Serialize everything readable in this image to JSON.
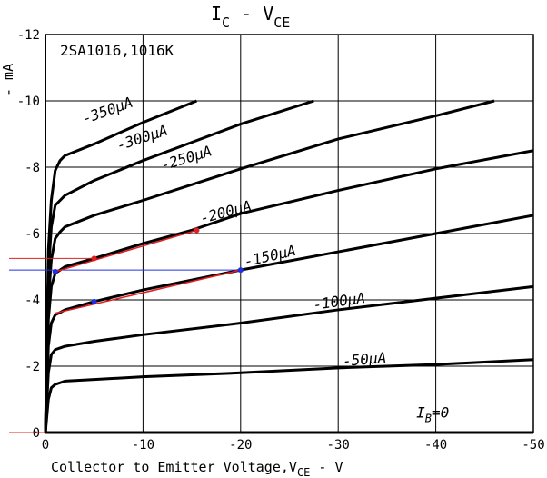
{
  "chart_data": {
    "type": "line",
    "title": "I_C - V_CE",
    "title_main": "I",
    "title_sub1": "C",
    "title_mid": " - V",
    "title_sub2": "CE",
    "part_number": "2SA1016,1016K",
    "xlabel": "Collector to Emitter Voltage,V_CE - V",
    "xlabel_main": "Collector to Emitter Voltage,V",
    "xlabel_sub": "CE",
    "xlabel_tail": " - V",
    "ylabel": "- mA",
    "xlim": [
      0,
      -50
    ],
    "ylim": [
      0,
      -12
    ],
    "x_ticks": [
      "0",
      "-10",
      "-20",
      "-30",
      "-40",
      "-50"
    ],
    "y_ticks": [
      "0",
      "-2",
      "-4",
      "-6",
      "-8",
      "-10",
      "-12"
    ],
    "grid": true,
    "series": [
      {
        "name": "I_B = 0",
        "label": "I",
        "label_sub": "B",
        "label_tail": "=0",
        "x": [
          0,
          -50
        ],
        "y": [
          0,
          0
        ]
      },
      {
        "name": "-50 μA",
        "label": "-50μA",
        "x": [
          0,
          -0.3,
          -0.6,
          -1,
          -1.5,
          -2,
          -5,
          -10,
          -20,
          -30,
          -40,
          -50
        ],
        "y": [
          0,
          -1.0,
          -1.35,
          -1.45,
          -1.5,
          -1.55,
          -1.6,
          -1.68,
          -1.8,
          -1.95,
          -2.05,
          -2.2
        ]
      },
      {
        "name": "-100 μA",
        "label": "-100μA",
        "x": [
          0,
          -0.3,
          -0.6,
          -1,
          -1.5,
          -2,
          -5,
          -10,
          -20,
          -30,
          -40,
          -50
        ],
        "y": [
          0,
          -1.8,
          -2.35,
          -2.5,
          -2.55,
          -2.6,
          -2.75,
          -2.95,
          -3.3,
          -3.7,
          -4.05,
          -4.4
        ]
      },
      {
        "name": "-150 μA",
        "label": "-150μA",
        "x": [
          0,
          -0.3,
          -0.6,
          -1,
          -1.5,
          -2,
          -5,
          -10,
          -20,
          -30,
          -40,
          -50
        ],
        "y": [
          0,
          -2.6,
          -3.3,
          -3.55,
          -3.62,
          -3.7,
          -3.95,
          -4.3,
          -4.9,
          -5.45,
          -6.0,
          -6.55
        ]
      },
      {
        "name": "-200 μA",
        "label": "-200μA",
        "x": [
          0,
          -0.3,
          -0.6,
          -1,
          -1.5,
          -2,
          -5,
          -10,
          -15,
          -20,
          -30,
          -40,
          -50
        ],
        "y": [
          0,
          -3.4,
          -4.4,
          -4.8,
          -4.9,
          -5.0,
          -5.25,
          -5.7,
          -6.1,
          -6.6,
          -7.3,
          -7.95,
          -8.5
        ]
      },
      {
        "name": "-250 μA",
        "label": "-250μA",
        "x": [
          0,
          -0.3,
          -0.6,
          -1,
          -1.5,
          -2,
          -5,
          -10,
          -20,
          -30,
          -40,
          -46
        ],
        "y": [
          0,
          -4.0,
          -5.2,
          -5.85,
          -6.05,
          -6.2,
          -6.55,
          -7.0,
          -7.95,
          -8.85,
          -9.55,
          -10.0
        ]
      },
      {
        "name": "-300 μA",
        "label": "-300μA",
        "x": [
          0,
          -0.3,
          -0.6,
          -1,
          -1.5,
          -2,
          -5,
          -10,
          -15,
          -20,
          -27.5
        ],
        "y": [
          0,
          -4.8,
          -6.2,
          -6.85,
          -7.0,
          -7.15,
          -7.6,
          -8.2,
          -8.75,
          -9.3,
          -10.0
        ]
      },
      {
        "name": "-350 μA",
        "label": "-350μA",
        "x": [
          0,
          -0.3,
          -0.6,
          -1,
          -1.5,
          -2,
          -5,
          -10,
          -15.5
        ],
        "y": [
          0,
          -5.5,
          -7.0,
          -7.9,
          -8.2,
          -8.35,
          -8.7,
          -9.35,
          -10.0
        ]
      }
    ],
    "annotations": [
      {
        "x": -1,
        "y": -4.85,
        "color": "red"
      },
      {
        "x": -1,
        "y": -4.85,
        "color": "blue"
      },
      {
        "x": -5,
        "y": -5.25,
        "color": "red"
      },
      {
        "x": -15.5,
        "y": -6.1,
        "color": "red"
      },
      {
        "x": -5,
        "y": -3.95,
        "color": "blue"
      },
      {
        "x": -20,
        "y": -4.9,
        "color": "blue"
      }
    ],
    "colors": {
      "curve": "#000000",
      "grid": "#000000",
      "marker_red": "#e02020",
      "marker_blue": "#2030e0"
    }
  }
}
